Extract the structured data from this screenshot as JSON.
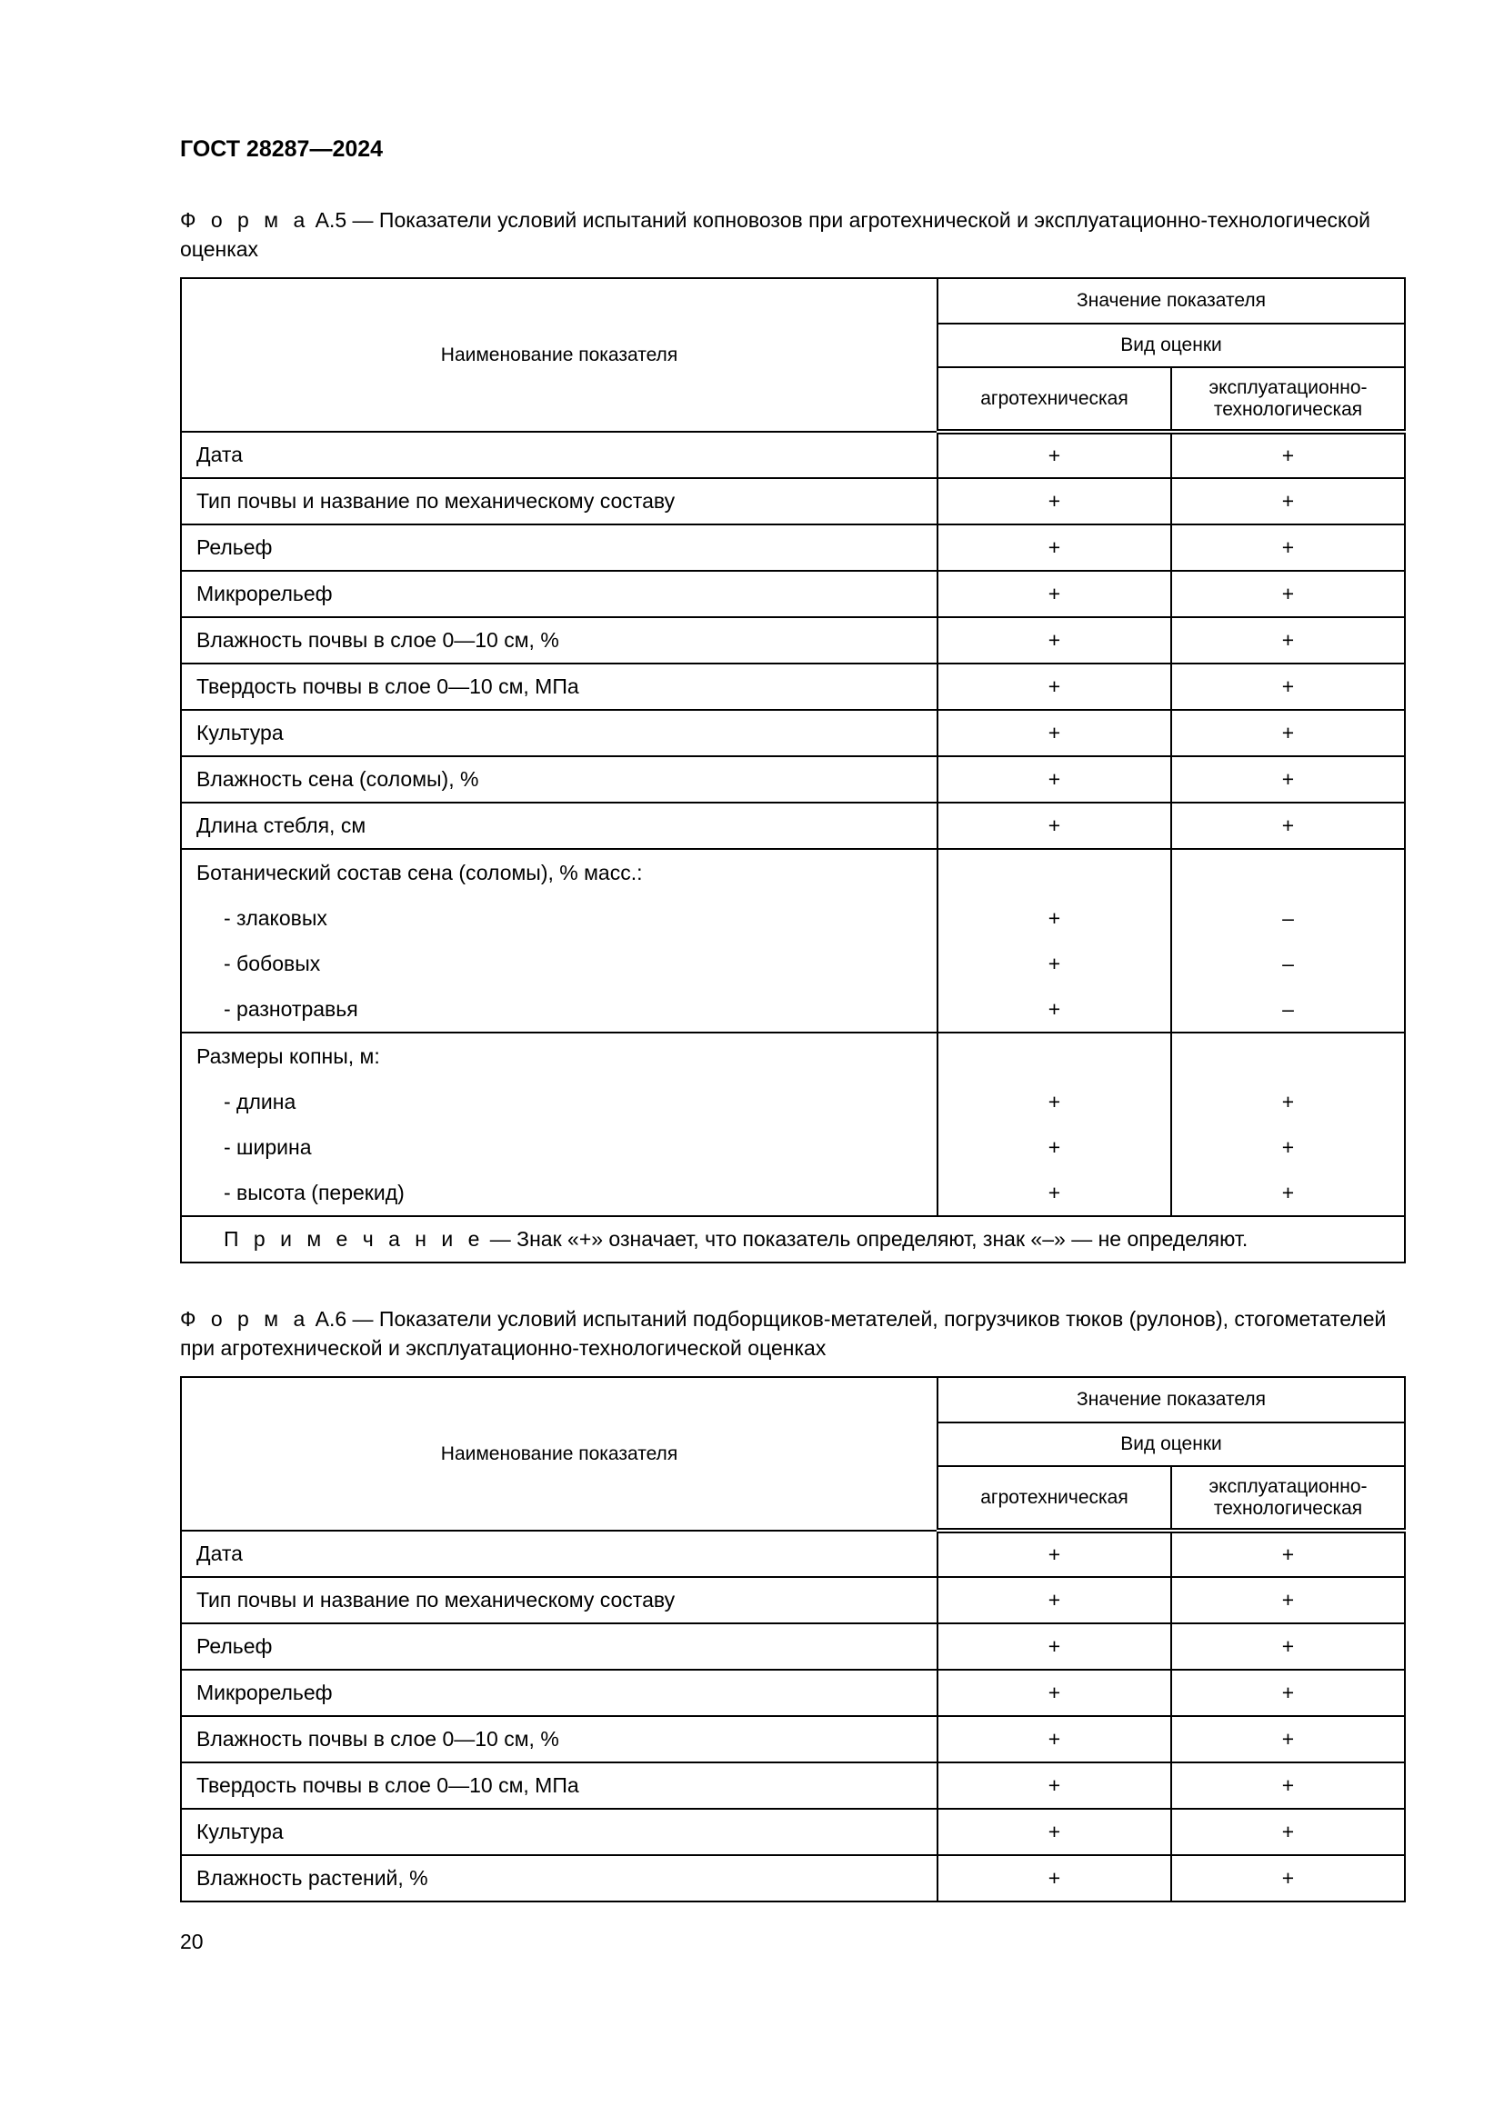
{
  "header": {
    "doc_id": "ГОСТ 28287—2024"
  },
  "form_a5": {
    "caption_prefix": "Ф о р м а",
    "caption_text": "А.5 — Показатели условий испытаний копновозов при агротехнической и эксплуатационно-технологической оценках",
    "columns": {
      "name": "Наименование показателя",
      "value": "Значение показателя",
      "kind": "Вид оценки",
      "agro": "агротехническая",
      "expl": "эксплуатационно-технологическая"
    },
    "rows": [
      {
        "name": "Дата",
        "agro": "+",
        "expl": "+"
      },
      {
        "name": "Тип почвы и название по механическому составу",
        "agro": "+",
        "expl": "+"
      },
      {
        "name": "Рельеф",
        "agro": "+",
        "expl": "+"
      },
      {
        "name": "Микрорельеф",
        "agro": "+",
        "expl": "+"
      },
      {
        "name": "Влажность почвы в слое 0—10 см, %",
        "agro": "+",
        "expl": "+"
      },
      {
        "name": "Твердость почвы в слое 0—10 см, МПа",
        "agro": "+",
        "expl": "+"
      },
      {
        "name": "Культура",
        "agro": "+",
        "expl": "+"
      },
      {
        "name": "Влажность сена (соломы), %",
        "agro": "+",
        "expl": "+"
      },
      {
        "name": "Длина стебля, см",
        "agro": "+",
        "expl": "+"
      },
      {
        "name": "Ботанический состав сена (соломы), % масс.:",
        "sub": [
          {
            "name": "-  злаковых",
            "agro": "+",
            "expl": "–"
          },
          {
            "name": "-  бобовых",
            "agro": "+",
            "expl": "–"
          },
          {
            "name": "-  разнотравья",
            "agro": "+",
            "expl": "–"
          }
        ]
      },
      {
        "name": "Размеры копны, м:",
        "sub": [
          {
            "name": "-  длина",
            "agro": "+",
            "expl": "+"
          },
          {
            "name": "-  ширина",
            "agro": "+",
            "expl": "+"
          },
          {
            "name": "-  высота (перекид)",
            "agro": "+",
            "expl": "+"
          }
        ]
      }
    ],
    "note_label": "П р и м е ч а н и е",
    "note_text": " — Знак «+» означает, что показатель определяют, знак «–» — не определяют."
  },
  "form_a6": {
    "caption_prefix": "Ф о р м а",
    "caption_text": "А.6 — Показатели условий испытаний подборщиков-метателей, погрузчиков тюков (рулонов), стогометателей при агротехнической и эксплуатационно-технологической оценках",
    "columns": {
      "name": "Наименование показателя",
      "value": "Значение показателя",
      "kind": "Вид оценки",
      "agro": "агротехническая",
      "expl": "эксплуатационно-технологическая"
    },
    "rows": [
      {
        "name": "Дата",
        "agro": "+",
        "expl": "+"
      },
      {
        "name": "Тип почвы и название по механическому составу",
        "agro": "+",
        "expl": "+"
      },
      {
        "name": "Рельеф",
        "agro": "+",
        "expl": "+"
      },
      {
        "name": "Микрорельеф",
        "agro": "+",
        "expl": "+"
      },
      {
        "name": "Влажность почвы в слое 0—10 см, %",
        "agro": "+",
        "expl": "+"
      },
      {
        "name": "Твердость почвы в слое 0—10 см, МПа",
        "agro": "+",
        "expl": "+"
      },
      {
        "name": "Культура",
        "agro": "+",
        "expl": "+"
      },
      {
        "name": "Влажность растений, %",
        "agro": "+",
        "expl": "+"
      }
    ]
  },
  "page_number": "20"
}
